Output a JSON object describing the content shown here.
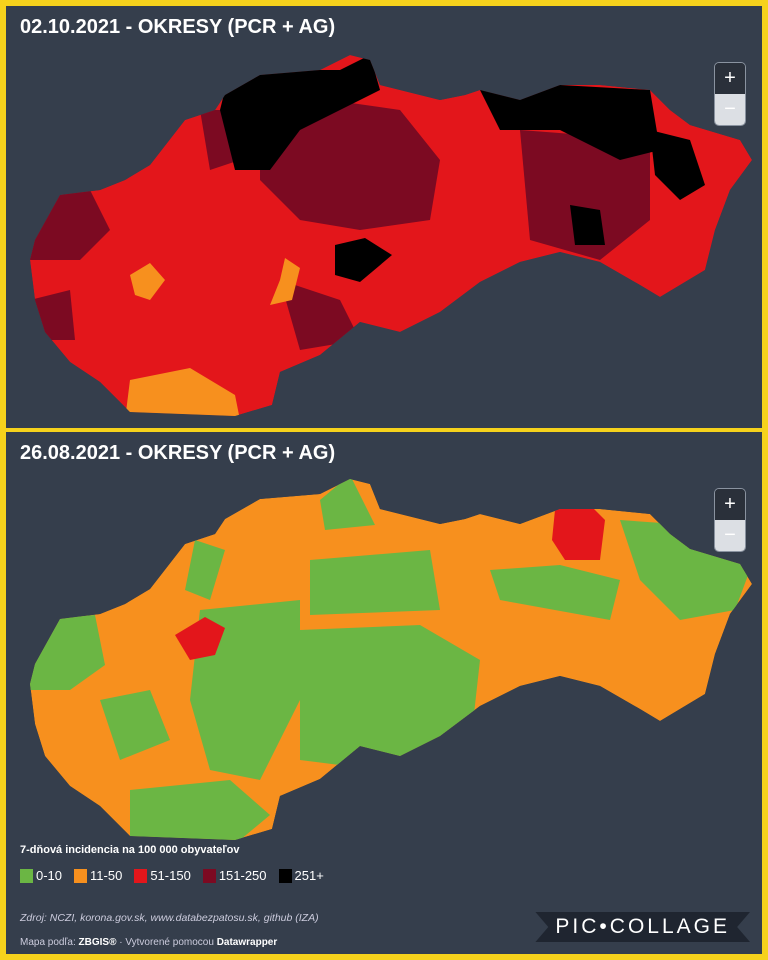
{
  "maps": [
    {
      "title": "02.10.2021 - OKRESY (PCR + AG)",
      "zoom_in": "+",
      "zoom_out": "−"
    },
    {
      "title": "26.08.2021 - OKRESY (PCR + AG)",
      "zoom_in": "+",
      "zoom_out": "−"
    }
  ],
  "legend": {
    "title": "7-dňová incidencia na 100 000 obyvateľov",
    "items": [
      {
        "label": "0-10",
        "color": "#6bb644"
      },
      {
        "label": "11-50",
        "color": "#f7901e"
      },
      {
        "label": "51-150",
        "color": "#e3161b"
      },
      {
        "label": "151-250",
        "color": "#7c0a22"
      },
      {
        "label": "251+",
        "color": "#000000"
      }
    ]
  },
  "source": "Zdroj: NCZI, korona.gov.sk, www.databezpatosu.sk, github (IZA)",
  "credit": {
    "prefix": "Mapa podľa: ",
    "zbgis": "ZBGIS®",
    "middle": " · Vytvorené pomocou ",
    "datawrapper": "Datawrapper"
  },
  "watermark": "PIC•COLLAGE"
}
